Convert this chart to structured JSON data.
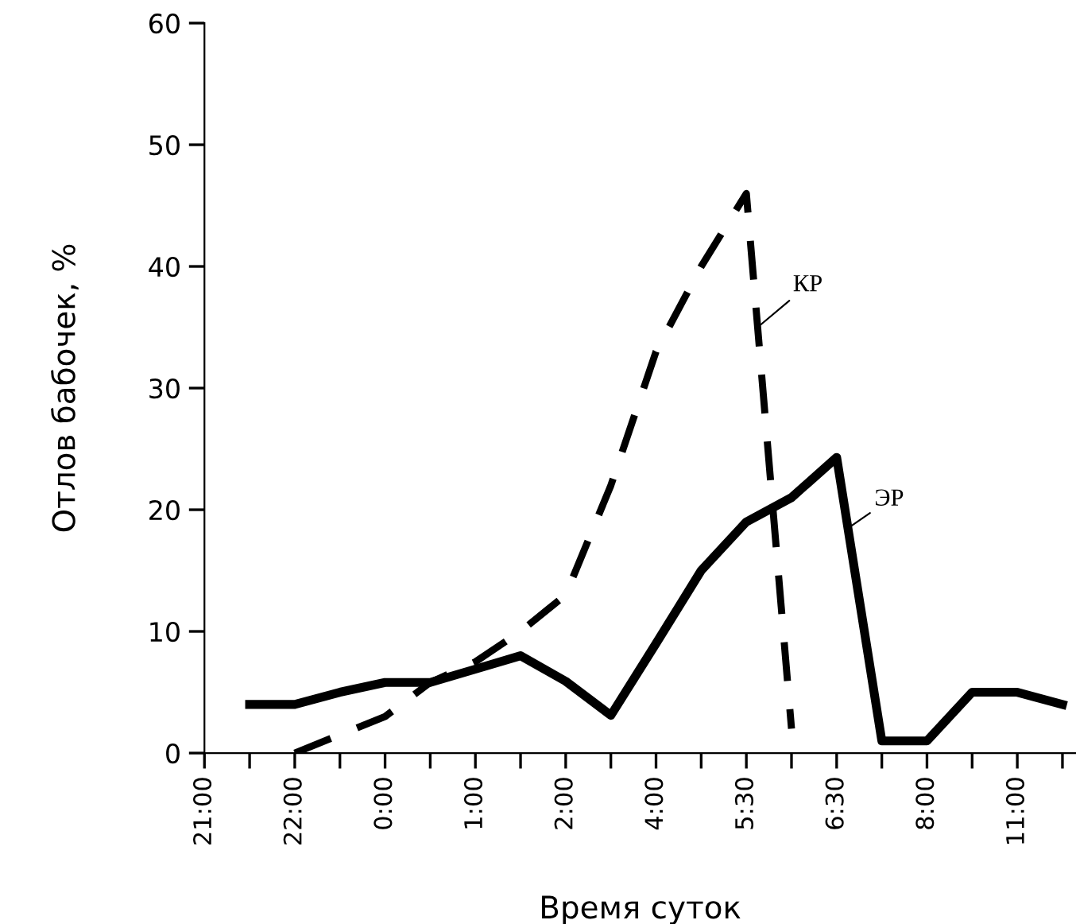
{
  "chart_data": {
    "type": "line",
    "xlabel": "Время суток",
    "ylabel": "Отлов бабочек, %",
    "categories": [
      "21:00",
      null,
      "22:00",
      null,
      "0:00",
      null,
      "1:00",
      null,
      "2:00",
      null,
      "4:00",
      null,
      "5:30",
      null,
      "6:30",
      null,
      "8:00",
      null,
      "11:00",
      null
    ],
    "series": [
      {
        "name": "КР",
        "color": "#000000",
        "line_style": "dashed",
        "values": [
          null,
          null,
          0,
          1.5,
          3,
          5.8,
          7.5,
          10,
          13,
          22,
          33,
          40,
          46,
          2,
          null,
          null,
          null,
          null,
          null,
          null
        ]
      },
      {
        "name": "ЭР",
        "color": "#000000",
        "line_style": "solid",
        "values": [
          null,
          4,
          4,
          5,
          5.8,
          5.8,
          6.9,
          8,
          5.9,
          3.1,
          9,
          15,
          19,
          21,
          24.3,
          1,
          1,
          5,
          5,
          4
        ]
      }
    ],
    "ylim": [
      0,
      60
    ],
    "yticks": [
      0,
      10,
      20,
      30,
      40,
      50,
      60
    ],
    "grid": false,
    "legend": false,
    "marker": "none"
  }
}
